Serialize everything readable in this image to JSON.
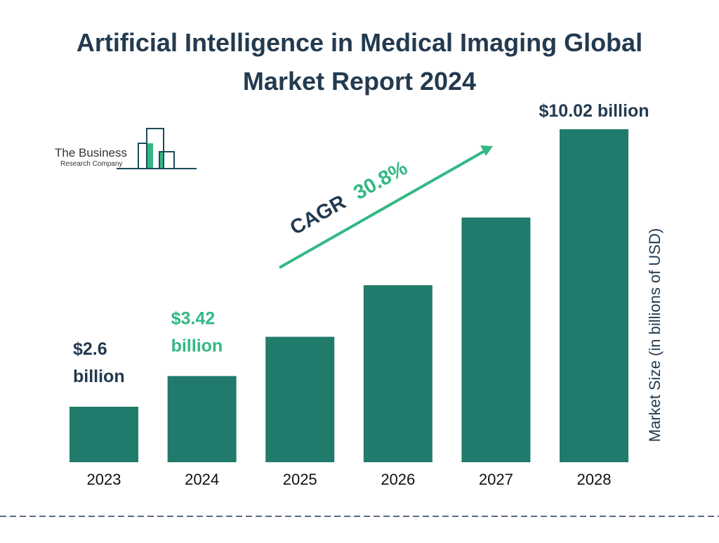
{
  "chart_data": {
    "type": "bar",
    "title": "Artificial Intelligence in Medical Imaging Global Market Report 2024",
    "title_lines": [
      "Artificial Intelligence in Medical Imaging Global",
      "Market Report 2024"
    ],
    "xlabel": "",
    "ylabel": "Market Size (in billions of USD)",
    "categories": [
      "2023",
      "2024",
      "2025",
      "2026",
      "2027",
      "2028"
    ],
    "values": [
      2.6,
      3.42,
      4.47,
      5.85,
      7.66,
      10.02
    ],
    "data_labels": [
      {
        "category": "2023",
        "lines": [
          "$2.6",
          "billion"
        ],
        "color": "#233a50"
      },
      {
        "category": "2024",
        "lines": [
          "$3.42",
          "billion"
        ],
        "color": "#33b884"
      },
      {
        "category": "2028",
        "lines": [
          "$10.02 billion"
        ],
        "color": "#233a50"
      }
    ],
    "annotation": {
      "prefix": "CAGR",
      "value": "30.8%"
    },
    "grid": false,
    "legend": "none",
    "colors": {
      "bar": "#217b6c",
      "accent": "#33b884",
      "text": "#233a50"
    }
  },
  "logo": {
    "line1": "The Business",
    "line2": "Research Company"
  }
}
